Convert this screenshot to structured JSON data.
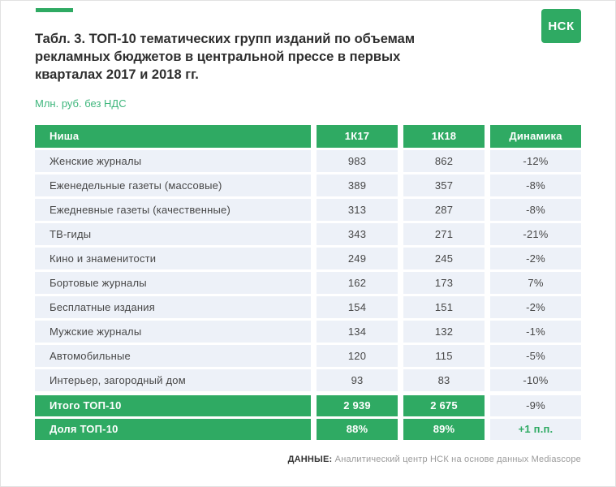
{
  "logo": {
    "text": "НСК"
  },
  "title": "Табл. 3. ТОП-10 тематических групп изданий по объемам рекламных бюджетов в центральной прессе в первых кварталах 2017 и 2018 гг.",
  "subtitle": "Млн. руб. без НДС",
  "colors": {
    "green": "#2faa63",
    "subtitle_green": "#3eb67c",
    "row_bg": "#edf1f8",
    "text": "#474747"
  },
  "table": {
    "headers": [
      "Ниша",
      "1К17",
      "1К18",
      "Динамика"
    ],
    "rows": [
      {
        "name": "Женские журналы",
        "q17": "983",
        "q18": "862",
        "dyn": "-12%"
      },
      {
        "name": "Еженедельные газеты (массовые)",
        "q17": "389",
        "q18": "357",
        "dyn": "-8%"
      },
      {
        "name": "Ежедневные газеты (качественные)",
        "q17": "313",
        "q18": "287",
        "dyn": "-8%"
      },
      {
        "name": "ТВ-гиды",
        "q17": "343",
        "q18": "271",
        "dyn": "-21%"
      },
      {
        "name": "Кино и знаменитости",
        "q17": "249",
        "q18": "245",
        "dyn": "-2%"
      },
      {
        "name": "Бортовые журналы",
        "q17": "162",
        "q18": "173",
        "dyn": "7%"
      },
      {
        "name": "Бесплатные издания",
        "q17": "154",
        "q18": "151",
        "dyn": "-2%"
      },
      {
        "name": "Мужские журналы",
        "q17": "134",
        "q18": "132",
        "dyn": "-1%"
      },
      {
        "name": "Автомобильные",
        "q17": "120",
        "q18": "115",
        "dyn": "-5%"
      },
      {
        "name": "Интерьер, загородный дом",
        "q17": "93",
        "q18": "83",
        "dyn": "-10%"
      }
    ],
    "total_row": {
      "name": "Итого ТОП-10",
      "q17": "2 939",
      "q18": "2 675",
      "dyn": "-9%"
    },
    "share_row": {
      "name": "Доля ТОП-10",
      "q17": "88%",
      "q18": "89%",
      "dyn": "+1 п.п."
    }
  },
  "footer": {
    "label": "ДАННЫЕ:",
    "text": "Аналитический центр НСК на основе данных Mediascope"
  },
  "chart_data": {
    "type": "table",
    "title": "Табл. 3. ТОП-10 тематических групп изданий по объемам рекламных бюджетов в центральной прессе в первых кварталах 2017 и 2018 гг.",
    "units": "Млн. руб. без НДС",
    "columns": [
      "Ниша",
      "1К17",
      "1К18",
      "Динамика"
    ],
    "rows": [
      {
        "niche": "Женские журналы",
        "k17": 983,
        "k18": 862,
        "dynamics": "-12%"
      },
      {
        "niche": "Еженедельные газеты (массовые)",
        "k17": 389,
        "k18": 357,
        "dynamics": "-8%"
      },
      {
        "niche": "Ежедневные газеты (качественные)",
        "k17": 313,
        "k18": 287,
        "dynamics": "-8%"
      },
      {
        "niche": "ТВ-гиды",
        "k17": 343,
        "k18": 271,
        "dynamics": "-21%"
      },
      {
        "niche": "Кино и знаменитости",
        "k17": 249,
        "k18": 245,
        "dynamics": "-2%"
      },
      {
        "niche": "Бортовые журналы",
        "k17": 162,
        "k18": 173,
        "dynamics": "7%"
      },
      {
        "niche": "Бесплатные издания",
        "k17": 154,
        "k18": 151,
        "dynamics": "-2%"
      },
      {
        "niche": "Мужские журналы",
        "k17": 134,
        "k18": 132,
        "dynamics": "-1%"
      },
      {
        "niche": "Автомобильные",
        "k17": 120,
        "k18": 115,
        "dynamics": "-5%"
      },
      {
        "niche": "Интерьер, загородный дом",
        "k17": 93,
        "k18": 83,
        "dynamics": "-10%"
      }
    ],
    "total": {
      "niche": "Итого ТОП-10",
      "k17": 2939,
      "k18": 2675,
      "dynamics": "-9%"
    },
    "share": {
      "niche": "Доля ТОП-10",
      "k17": "88%",
      "k18": "89%",
      "dynamics": "+1 п.п."
    },
    "source": "Аналитический центр НСК на основе данных Mediascope"
  }
}
